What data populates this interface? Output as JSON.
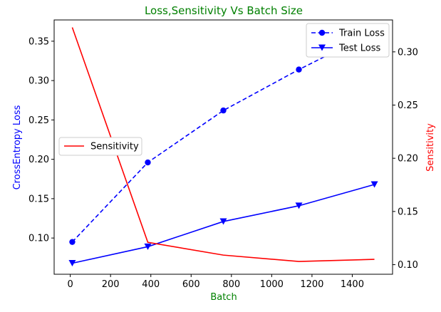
{
  "chart_data": {
    "type": "line",
    "title": "Loss,Sensitivity Vs Batch Size",
    "xlabel": "Batch",
    "ylabel_left": "CrossEntropy Loss",
    "ylabel_right": "Sensitivity",
    "xlim": [
      -80,
      1600
    ],
    "ylim_left": [
      0.054,
      0.377
    ],
    "ylim_right": [
      0.091,
      0.33
    ],
    "grid": false,
    "x_ticks": [
      0,
      200,
      400,
      600,
      800,
      1000,
      1200,
      1400
    ],
    "y_left_ticks": [
      0.1,
      0.15,
      0.2,
      0.25,
      0.3,
      0.35
    ],
    "y_right_ticks": [
      0.1,
      0.15,
      0.2,
      0.25,
      0.3
    ],
    "x": [
      10,
      385,
      760,
      1135,
      1510
    ],
    "left_legend_position": "upper right",
    "right_legend_position": "center left",
    "series": [
      {
        "name": "Train Loss",
        "axis": "left",
        "values": [
          0.095,
          0.196,
          0.262,
          0.314,
          0.362
        ],
        "color": "#0000ff",
        "linestyle": "dashed",
        "marker": "circle"
      },
      {
        "name": "Test Loss",
        "axis": "left",
        "values": [
          0.068,
          0.089,
          0.121,
          0.141,
          0.168
        ],
        "color": "#0000ff",
        "linestyle": "solid",
        "marker": "triangle-down"
      },
      {
        "name": "Sensitivity",
        "axis": "right",
        "values": [
          0.323,
          0.121,
          0.109,
          0.103,
          0.105
        ],
        "color": "#ff0000",
        "linestyle": "solid",
        "marker": "none"
      }
    ],
    "colors": {
      "title": "#008000",
      "xlabel": "#008000",
      "ylabel_left": "#0000ff",
      "ylabel_right": "#ff0000"
    }
  }
}
